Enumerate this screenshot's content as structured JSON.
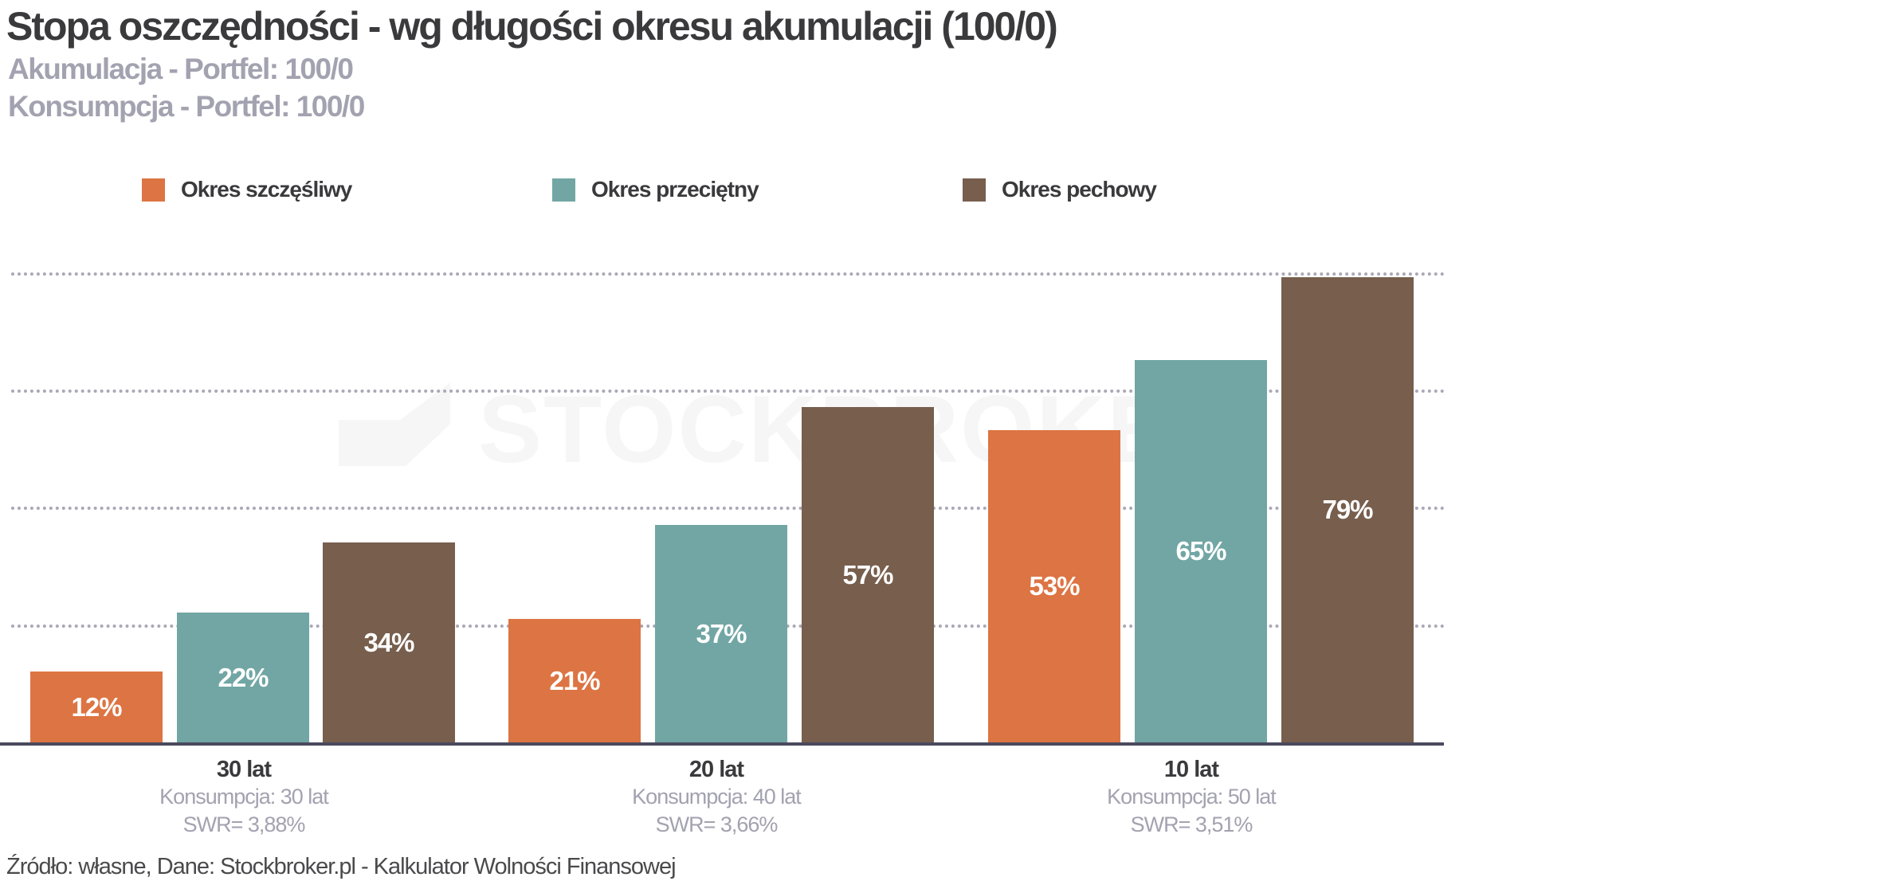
{
  "header": {
    "title": "Stopa oszczędności  - wg długości okresu akumulacji (100/0)",
    "subtitle1": "Akumulacja - Portfel: 100/0",
    "subtitle2": "Konsumpcja - Portfel: 100/0"
  },
  "legend": [
    {
      "label": "Okres szczęśliwy",
      "color": "#dd7443"
    },
    {
      "label": "Okres przeciętny",
      "color": "#71a6a4"
    },
    {
      "label": "Okres pechowy",
      "color": "#775e4d"
    }
  ],
  "watermark": "STOCKBROKER",
  "groups": [
    {
      "title": "30 lat",
      "sub1": "Konsumpcja: 30 lat",
      "sub2": "SWR= 3,88%",
      "bars": [
        {
          "value": 12,
          "label": "12%"
        },
        {
          "value": 22,
          "label": "22%"
        },
        {
          "value": 34,
          "label": "34%"
        }
      ]
    },
    {
      "title": "20 lat",
      "sub1": "Konsumpcja: 40 lat",
      "sub2": "SWR= 3,66%",
      "bars": [
        {
          "value": 21,
          "label": "21%"
        },
        {
          "value": 37,
          "label": "37%"
        },
        {
          "value": 57,
          "label": "57%"
        }
      ]
    },
    {
      "title": "10 lat",
      "sub1": "Konsumpcja: 50 lat",
      "sub2": "SWR= 3,51%",
      "bars": [
        {
          "value": 53,
          "label": "53%"
        },
        {
          "value": 65,
          "label": "65%"
        },
        {
          "value": 79,
          "label": "79%"
        }
      ]
    }
  ],
  "source": "Źródło: własne, Dane: Stockbroker.pl - Kalkulator Wolności Finansowej",
  "chart_data": {
    "type": "bar",
    "title": "Stopa oszczędności  - wg długości okresu akumulacji (100/0)",
    "subtitle": [
      "Akumulacja - Portfel: 100/0",
      "Konsumpcja - Portfel: 100/0"
    ],
    "categories": [
      "30 lat",
      "20 lat",
      "10 lat"
    ],
    "category_sublabels": [
      [
        "Konsumpcja: 30 lat",
        "SWR= 3,88%"
      ],
      [
        "Konsumpcja: 40 lat",
        "SWR= 3,66%"
      ],
      [
        "Konsumpcja: 50 lat",
        "SWR= 3,51%"
      ]
    ],
    "series": [
      {
        "name": "Okres szczęśliwy",
        "color": "#dd7443",
        "values": [
          12,
          21,
          53
        ]
      },
      {
        "name": "Okres przeciętny",
        "color": "#71a6a4",
        "values": [
          22,
          37,
          65
        ]
      },
      {
        "name": "Okres pechowy",
        "color": "#775e4d",
        "values": [
          34,
          57,
          79
        ]
      }
    ],
    "unit": "%",
    "xlabel": "",
    "ylabel": "",
    "ylim": [
      0,
      80
    ],
    "grid": true,
    "y_axis_visible": false,
    "legend_position": "top",
    "source": "Źródło: własne, Dane: Stockbroker.pl - Kalkulator Wolności Finansowej"
  }
}
